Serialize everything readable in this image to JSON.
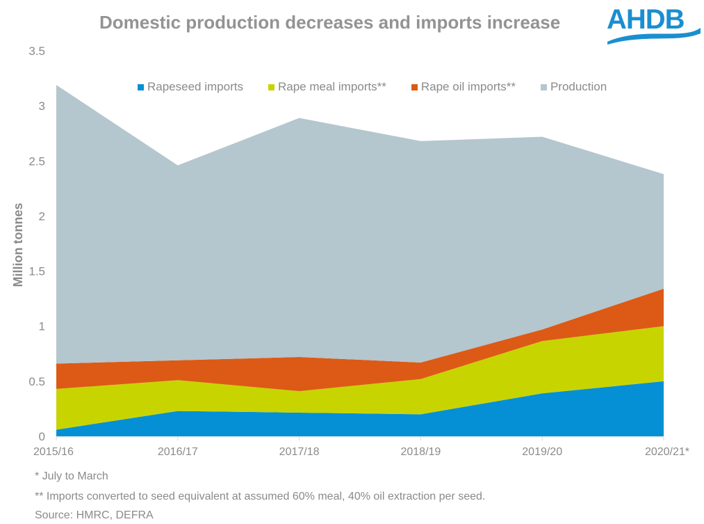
{
  "header": {
    "title": "Domestic production decreases and imports increase",
    "logo_text": "AHDB",
    "logo_color": "#1a8fd0"
  },
  "footnotes": [
    "* July to March",
    "** Imports converted to seed equivalent at assumed 60% meal, 40% oil extraction per seed.",
    "Source: HMRC, DEFRA"
  ],
  "chart_data": {
    "type": "area",
    "stacked": true,
    "title": "Domestic production decreases and imports increase",
    "xlabel": "",
    "ylabel": "Million tonnes",
    "ylim": [
      0,
      3.5
    ],
    "yticks": [
      0,
      0.5,
      1,
      1.5,
      2,
      2.5,
      3,
      3.5
    ],
    "ytick_labels": [
      "0",
      "0.5",
      "1",
      "1.5",
      "2",
      "2.5",
      "3",
      "3.5"
    ],
    "grid": false,
    "legend_position": "top",
    "categories": [
      "2015/16",
      "2016/17",
      "2017/18",
      "2018/19",
      "2019/20",
      "2020/21*"
    ],
    "series": [
      {
        "name": "Rapeseed imports",
        "color": "#0590d6",
        "values": [
          0.06,
          0.23,
          0.215,
          0.2,
          0.39,
          0.5
        ]
      },
      {
        "name": "Rape meal imports**",
        "color": "#c8d400",
        "values": [
          0.37,
          0.28,
          0.195,
          0.32,
          0.475,
          0.5
        ]
      },
      {
        "name": "Rape oil imports**",
        "color": "#dc5a16",
        "values": [
          0.23,
          0.18,
          0.31,
          0.15,
          0.105,
          0.34
        ]
      },
      {
        "name": "Production",
        "color": "#b4c6ce",
        "values": [
          2.53,
          1.77,
          2.17,
          2.01,
          1.75,
          1.04
        ]
      }
    ]
  }
}
